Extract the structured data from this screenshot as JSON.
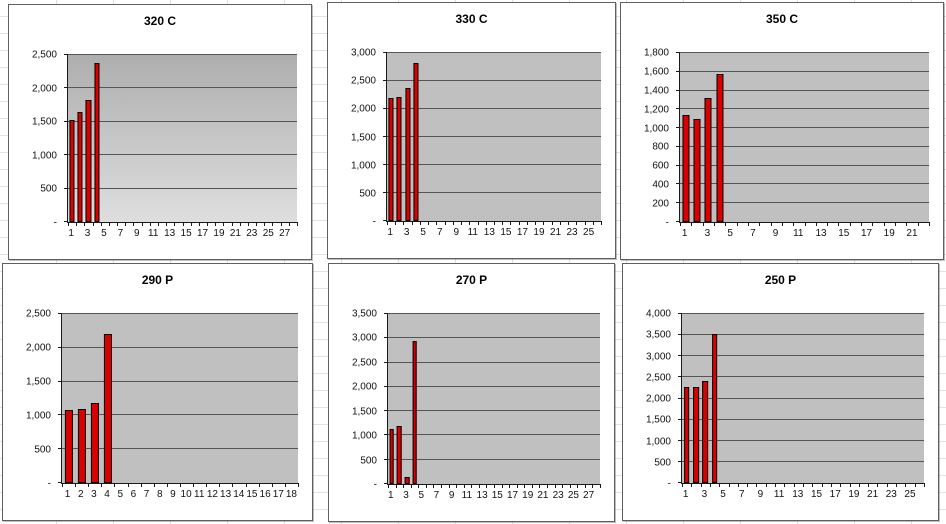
{
  "colors": {
    "bar_fill": "#d80000",
    "bar_border": "#000000",
    "plot_bg": "#c0c0c0",
    "plot_gradient_top": "#aeaeae",
    "plot_gradient_bottom": "#dedede",
    "gridline": "#555555",
    "panel_background": "#ffffff",
    "sheet_background": "#ffffff"
  },
  "chart_data": [
    {
      "type": "bar",
      "title": "320 C",
      "values": [
        1520,
        1640,
        1830,
        2380
      ],
      "n_categories": 28,
      "x_tick_labels": [
        "1",
        "3",
        "5",
        "7",
        "9",
        "11",
        "13",
        "15",
        "17",
        "19",
        "21",
        "23",
        "25",
        "27"
      ],
      "ylim": [
        0,
        2500
      ],
      "y_step": 500,
      "y_tick_labels": [
        "-",
        "500",
        "1,000",
        "1,500",
        "2,000",
        "2,500"
      ],
      "plot_style": "gradient",
      "grid": true,
      "legend": false
    },
    {
      "type": "bar",
      "title": "330 C",
      "values": [
        2200,
        2210,
        2380,
        2830
      ],
      "n_categories": 26,
      "x_tick_labels": [
        "1",
        "3",
        "5",
        "7",
        "9",
        "11",
        "13",
        "15",
        "17",
        "19",
        "21",
        "23",
        "25"
      ],
      "ylim": [
        0,
        3000
      ],
      "y_step": 500,
      "y_tick_labels": [
        "-",
        "500",
        "1,000",
        "1,500",
        "2,000",
        "2,500",
        "3,000"
      ],
      "plot_style": "solid",
      "grid": true,
      "legend": false
    },
    {
      "type": "bar",
      "title": "350 C",
      "values": [
        1140,
        1100,
        1320,
        1575
      ],
      "n_categories": 22,
      "x_tick_labels": [
        "1",
        "3",
        "5",
        "7",
        "9",
        "11",
        "13",
        "15",
        "17",
        "19",
        "21"
      ],
      "ylim": [
        0,
        1800
      ],
      "y_step": 200,
      "y_tick_labels": [
        "-",
        "200",
        "400",
        "600",
        "800",
        "1,000",
        "1,200",
        "1,400",
        "1,600",
        "1,800"
      ],
      "plot_style": "solid",
      "grid": true,
      "legend": false
    },
    {
      "type": "bar",
      "title": "290 P",
      "values": [
        1080,
        1100,
        1180,
        2210
      ],
      "n_categories": 18,
      "x_tick_labels": [
        "1",
        "2",
        "3",
        "4",
        "5",
        "6",
        "7",
        "8",
        "9",
        "10",
        "11",
        "12",
        "13",
        "14",
        "15",
        "16",
        "17",
        "18"
      ],
      "ylim": [
        0,
        2500
      ],
      "y_step": 500,
      "y_tick_labels": [
        "-",
        "500",
        "1,000",
        "1,500",
        "2,000",
        "2,500"
      ],
      "plot_style": "solid",
      "grid": true,
      "legend": false
    },
    {
      "type": "bar",
      "title": "270 P",
      "values": [
        1130,
        1190,
        150,
        2950
      ],
      "n_categories": 28,
      "x_tick_labels": [
        "1",
        "3",
        "5",
        "7",
        "9",
        "11",
        "13",
        "15",
        "17",
        "19",
        "21",
        "23",
        "25",
        "27"
      ],
      "ylim": [
        0,
        3500
      ],
      "y_step": 500,
      "y_tick_labels": [
        "-",
        "500",
        "1,000",
        "1,500",
        "2,000",
        "2,500",
        "3,000",
        "3,500"
      ],
      "plot_style": "solid",
      "grid": true,
      "legend": false
    },
    {
      "type": "bar",
      "title": "250 P",
      "values": [
        2280,
        2280,
        2420,
        3530
      ],
      "n_categories": 26,
      "x_tick_labels": [
        "1",
        "3",
        "5",
        "7",
        "9",
        "11",
        "13",
        "15",
        "17",
        "19",
        "21",
        "23",
        "25"
      ],
      "ylim": [
        0,
        4000
      ],
      "y_step": 500,
      "y_tick_labels": [
        "-",
        "500",
        "1,000",
        "1,500",
        "2,000",
        "2,500",
        "3,000",
        "3,500",
        "4,000"
      ],
      "plot_style": "solid",
      "grid": true,
      "legend": false
    }
  ]
}
